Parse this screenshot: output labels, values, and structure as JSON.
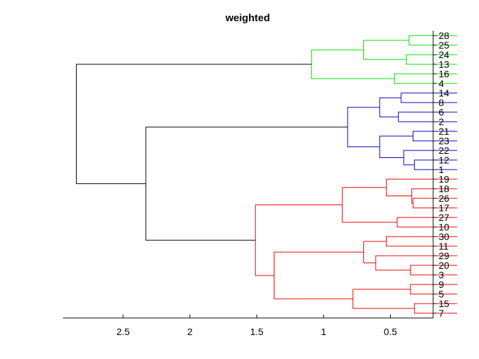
{
  "chart_data": {
    "type": "dendrogram",
    "title": "weighted",
    "xlabel": "",
    "ylabel": "",
    "orientation": "left",
    "xlim": [
      2.95,
      0.18
    ],
    "xticks": [
      2.5,
      2,
      1.5,
      1,
      0.5
    ],
    "xtick_labels": [
      "2.5",
      "2",
      "1.5",
      "1",
      "0.5"
    ],
    "grid": false,
    "leaf_order": [
      "28",
      "25",
      "24",
      "13",
      "16",
      "4",
      "14",
      "8",
      "6",
      "2",
      "21",
      "23",
      "22",
      "12",
      "1",
      "19",
      "18",
      "26",
      "17",
      "27",
      "10",
      "30",
      "11",
      "29",
      "20",
      "3",
      "9",
      "5",
      "15",
      "7"
    ],
    "colors": {
      "green": "#00dd00",
      "blue": "#0000bb",
      "red": "#ee0000",
      "black": "#000000"
    },
    "merges": [
      {
        "id": "g1",
        "left": "28",
        "right": "25",
        "height": 0.36,
        "color": "green"
      },
      {
        "id": "g2",
        "left": "24",
        "right": "13",
        "height": 0.38,
        "color": "green"
      },
      {
        "id": "g3",
        "left": "g1",
        "right": "g2",
        "height": 0.7,
        "color": "green"
      },
      {
        "id": "g4",
        "left": "16",
        "right": "4",
        "height": 0.47,
        "color": "green"
      },
      {
        "id": "G",
        "left": "g3",
        "right": "g4",
        "height": 1.09,
        "color": "green"
      },
      {
        "id": "b1",
        "left": "14",
        "right": "8",
        "height": 0.42,
        "color": "blue"
      },
      {
        "id": "b2",
        "left": "6",
        "right": "2",
        "height": 0.44,
        "color": "blue"
      },
      {
        "id": "b3",
        "left": "b1",
        "right": "b2",
        "height": 0.58,
        "color": "blue"
      },
      {
        "id": "b4",
        "left": "21",
        "right": "23",
        "height": 0.33,
        "color": "blue"
      },
      {
        "id": "b5",
        "left": "12",
        "right": "1",
        "height": 0.32,
        "color": "blue"
      },
      {
        "id": "b6",
        "left": "22",
        "right": "b5",
        "height": 0.4,
        "color": "blue"
      },
      {
        "id": "b7",
        "left": "b4",
        "right": "b6",
        "height": 0.58,
        "color": "blue"
      },
      {
        "id": "B",
        "left": "b3",
        "right": "b7",
        "height": 0.82,
        "color": "blue"
      },
      {
        "id": "r1",
        "left": "26",
        "right": "17",
        "height": 0.33,
        "color": "red"
      },
      {
        "id": "r2",
        "left": "18",
        "right": "r1",
        "height": 0.34,
        "color": "red"
      },
      {
        "id": "r3",
        "left": "19",
        "right": "r2",
        "height": 0.53,
        "color": "red"
      },
      {
        "id": "r4",
        "left": "27",
        "right": "10",
        "height": 0.45,
        "color": "red"
      },
      {
        "id": "r5",
        "left": "r3",
        "right": "r4",
        "height": 0.86,
        "color": "red"
      },
      {
        "id": "r6",
        "left": "30",
        "right": "11",
        "height": 0.53,
        "color": "red"
      },
      {
        "id": "r7",
        "left": "20",
        "right": "3",
        "height": 0.35,
        "color": "red"
      },
      {
        "id": "r8",
        "left": "29",
        "right": "r7",
        "height": 0.61,
        "color": "red"
      },
      {
        "id": "r9",
        "left": "r6",
        "right": "r8",
        "height": 0.7,
        "color": "red"
      },
      {
        "id": "r10",
        "left": "9",
        "right": "5",
        "height": 0.35,
        "color": "red"
      },
      {
        "id": "r11",
        "left": "15",
        "right": "7",
        "height": 0.32,
        "color": "red"
      },
      {
        "id": "r12",
        "left": "r10",
        "right": "r11",
        "height": 0.78,
        "color": "red"
      },
      {
        "id": "r13",
        "left": "r9",
        "right": "r12",
        "height": 1.37,
        "color": "red"
      },
      {
        "id": "R",
        "left": "r5",
        "right": "r13",
        "height": 1.51,
        "color": "red"
      },
      {
        "id": "BR",
        "left": "B",
        "right": "R",
        "height": 2.33,
        "color": "black"
      },
      {
        "id": "root",
        "left": "G",
        "right": "BR",
        "height": 2.85,
        "color": "black"
      }
    ]
  }
}
